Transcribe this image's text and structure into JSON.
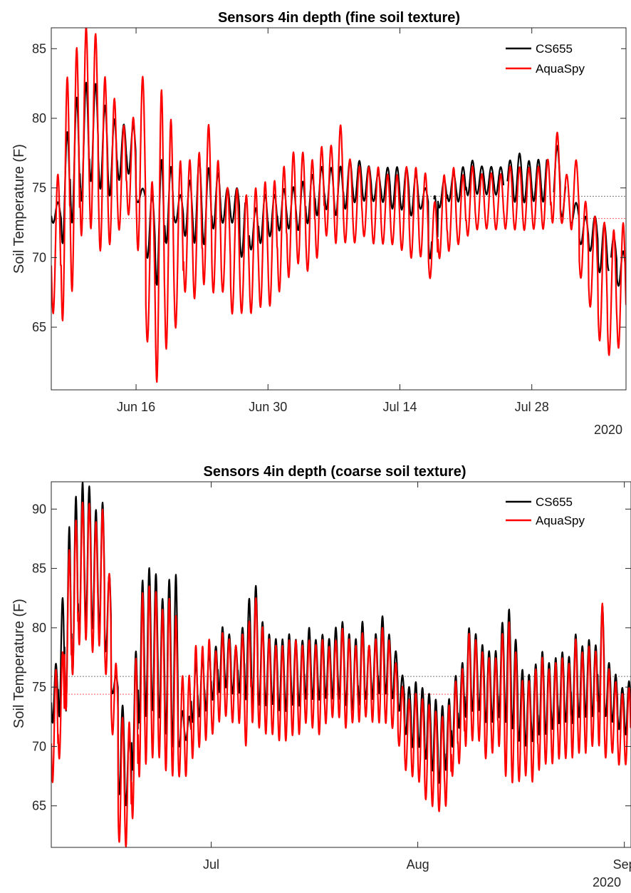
{
  "colors": {
    "cs655": "#000000",
    "aquaspy": "#ff0000",
    "axis": "#262626"
  },
  "chart_data": [
    {
      "type": "line",
      "title": "Sensors 4in depth (fine soil texture)",
      "xlabel": "",
      "ylabel": "Soil Temperature (F)",
      "x_range": [
        "2020-06-07",
        "2020-08-07"
      ],
      "ylim": [
        60.5,
        86.5
      ],
      "yticks": [
        65,
        70,
        75,
        80,
        85
      ],
      "xticks": [
        {
          "date": "2020-06-16",
          "label": "Jun 16"
        },
        {
          "date": "2020-06-30",
          "label": "Jun 30"
        },
        {
          "date": "2020-07-14",
          "label": "Jul 14"
        },
        {
          "date": "2020-07-28",
          "label": "Jul 28"
        }
      ],
      "year_label": "2020",
      "legend": {
        "location": "top-right",
        "entries": [
          "CS655",
          "AquaSpy"
        ]
      },
      "series": [
        {
          "name": "CS655",
          "color": "#000000",
          "mean": 74.4,
          "daily_min": [
            72.5,
            71.0,
            72.5,
            74.0,
            75.5,
            75.0,
            74.5,
            75.5,
            76.0,
            74.0,
            70.0,
            68.0,
            71.0,
            72.5,
            71.5,
            71.0,
            71.0,
            72.0,
            72.5,
            72.5,
            70.0,
            70.5,
            71.0,
            71.5,
            72.0,
            72.0,
            72.0,
            72.5,
            73.0,
            73.5,
            73.0,
            73.5,
            74.0,
            74.0,
            74.0,
            74.0,
            73.5,
            73.5,
            73.0,
            73.5,
            70.0,
            73.5,
            74.0,
            74.0,
            74.5,
            74.5,
            74.5,
            74.5,
            74.5,
            74.0,
            74.0,
            74.0,
            74.0,
            74.0,
            73.0,
            72.5,
            71.0,
            70.5,
            69.0,
            69.0,
            68.0,
            70.0
          ],
          "daily_max": [
            74.0,
            79.0,
            81.5,
            82.5,
            82.5,
            81.0,
            80.0,
            79.5,
            79.5,
            75.0,
            74.5,
            77.0,
            76.5,
            74.5,
            75.5,
            77.0,
            76.5,
            76.0,
            75.0,
            75.0,
            74.5,
            73.5,
            74.5,
            74.5,
            75.0,
            75.0,
            75.5,
            76.0,
            76.5,
            76.5,
            76.5,
            77.0,
            77.0,
            76.5,
            76.0,
            76.5,
            76.5,
            76.5,
            76.0,
            75.0,
            74.5,
            75.5,
            76.0,
            76.5,
            77.0,
            76.5,
            76.5,
            76.5,
            77.0,
            77.5,
            77.0,
            77.0,
            77.5,
            78.0,
            75.5,
            74.0,
            73.0,
            73.0,
            72.5,
            71.5,
            70.5,
            74.0
          ],
          "gaps": [
            [
              20.6,
              21.0
            ],
            [
              40.4,
              40.6
            ],
            [
              48.0,
              48.4
            ],
            [
              52.6,
              53.3
            ],
            [
              54.6,
              55.2
            ],
            [
              59.2,
              59.4
            ]
          ]
        },
        {
          "name": "AquaSpy",
          "color": "#ff0000",
          "mean": 72.8,
          "daily_min": [
            66.0,
            65.5,
            67.5,
            71.5,
            72.0,
            70.5,
            71.0,
            72.0,
            73.0,
            70.5,
            64.0,
            61.0,
            63.5,
            65.0,
            67.5,
            67.0,
            68.0,
            67.5,
            67.5,
            66.0,
            66.0,
            66.0,
            66.5,
            66.5,
            67.5,
            68.5,
            69.5,
            69.0,
            70.0,
            71.5,
            71.0,
            71.0,
            71.0,
            71.5,
            71.0,
            71.0,
            71.0,
            70.5,
            70.0,
            70.0,
            68.5,
            70.0,
            70.5,
            71.0,
            71.5,
            72.0,
            72.0,
            72.0,
            72.0,
            72.0,
            72.0,
            72.0,
            72.0,
            72.5,
            72.5,
            72.0,
            68.5,
            66.5,
            64.0,
            63.0,
            63.5,
            67.0
          ],
          "daily_max": [
            76.0,
            83.0,
            85.0,
            86.5,
            86.0,
            83.0,
            81.5,
            79.5,
            80.0,
            83.0,
            75.5,
            82.0,
            80.0,
            77.0,
            77.0,
            77.5,
            79.5,
            77.0,
            75.0,
            75.0,
            74.5,
            75.0,
            75.5,
            75.5,
            76.5,
            77.5,
            77.5,
            77.0,
            78.0,
            78.0,
            79.5,
            77.0,
            76.5,
            76.5,
            76.5,
            76.0,
            76.0,
            76.5,
            76.5,
            76.0,
            74.0,
            76.0,
            76.5,
            76.0,
            76.5,
            76.0,
            76.0,
            76.0,
            76.5,
            76.5,
            76.5,
            76.5,
            77.0,
            79.0,
            76.0,
            77.0,
            74.0,
            73.0,
            72.5,
            72.0,
            72.5,
            75.0
          ],
          "gaps": []
        }
      ]
    },
    {
      "type": "line",
      "title": "Sensors 4in depth (coarse soil texture)",
      "xlabel": "",
      "ylabel": "Soil Temperature (F)",
      "x_range": [
        "2020-06-07",
        "2020-09-02"
      ],
      "ylim": [
        61.5,
        92.3
      ],
      "yticks": [
        65,
        70,
        75,
        80,
        85,
        90
      ],
      "xticks": [
        {
          "date": "2020-07-01",
          "label": "Jul"
        },
        {
          "date": "2020-08-01",
          "label": "Aug"
        },
        {
          "date": "2020-09-01",
          "label": "Sep"
        }
      ],
      "year_label": "2020",
      "legend": {
        "location": "top-right",
        "entries": [
          "CS655",
          "AquaSpy"
        ]
      },
      "series": [
        {
          "name": "CS655",
          "color": "#000000",
          "mean": 75.9,
          "daily_min": [
            72.0,
            72.5,
            73.0,
            76.0,
            79.0,
            80.5,
            80.0,
            79.5,
            78.0,
            74.5,
            66.0,
            65.0,
            68.0,
            72.0,
            72.5,
            73.0,
            72.5,
            71.0,
            70.0,
            70.0,
            70.5,
            72.0,
            72.5,
            73.0,
            74.0,
            74.5,
            75.0,
            74.5,
            74.5,
            74.0,
            73.5,
            73.5,
            73.5,
            73.5,
            73.0,
            73.0,
            73.5,
            73.5,
            74.0,
            74.0,
            74.0,
            74.0,
            74.0,
            74.0,
            73.5,
            73.0,
            73.5,
            74.0,
            74.0,
            74.5,
            74.5,
            74.0,
            73.0,
            71.0,
            70.0,
            70.0,
            69.0,
            68.0,
            67.0,
            68.0,
            70.0,
            71.5,
            72.5,
            73.0,
            73.0,
            72.0,
            72.0,
            72.5,
            72.0,
            71.5,
            70.5,
            70.0,
            70.5,
            71.0,
            71.0,
            71.5,
            72.0,
            72.0,
            72.0,
            72.5,
            72.5,
            72.5,
            73.0,
            72.5,
            72.0,
            71.5,
            71.0,
            71.0
          ],
          "daily_max": [
            77.0,
            82.5,
            88.5,
            91.0,
            92.3,
            92.0,
            90.0,
            90.5,
            84.5,
            76.0,
            73.5,
            71.0,
            78.0,
            84.0,
            85.0,
            84.5,
            82.5,
            84.0,
            84.5,
            73.0,
            72.5,
            77.0,
            77.5,
            78.0,
            78.5,
            80.0,
            79.5,
            78.5,
            80.0,
            82.5,
            83.5,
            80.5,
            79.5,
            79.0,
            79.0,
            79.5,
            79.0,
            79.0,
            80.0,
            79.0,
            79.5,
            79.0,
            80.0,
            80.5,
            79.5,
            79.0,
            80.5,
            78.5,
            79.5,
            81.0,
            79.5,
            78.0,
            76.0,
            75.0,
            75.5,
            75.0,
            74.5,
            74.0,
            73.5,
            74.0,
            76.0,
            77.0,
            80.0,
            79.5,
            78.5,
            78.0,
            78.0,
            80.5,
            81.5,
            79.0,
            76.5,
            76.0,
            77.0,
            78.0,
            77.0,
            77.5,
            78.0,
            77.5,
            79.5,
            78.5,
            79.0,
            78.5,
            82.0,
            77.0,
            76.0,
            75.0,
            75.5,
            74.5
          ],
          "gaps": []
        },
        {
          "name": "AquaSpy",
          "color": "#ff0000",
          "mean": 74.4,
          "daily_min": [
            67.0,
            69.0,
            73.0,
            76.0,
            78.5,
            79.0,
            78.0,
            78.5,
            76.0,
            71.0,
            62.0,
            61.5,
            64.0,
            67.5,
            68.5,
            69.0,
            69.0,
            68.0,
            67.5,
            67.5,
            67.5,
            69.0,
            70.0,
            70.5,
            71.0,
            72.0,
            72.5,
            72.0,
            72.0,
            70.0,
            72.0,
            71.5,
            71.0,
            71.0,
            70.5,
            70.5,
            71.0,
            71.0,
            72.0,
            71.5,
            71.0,
            72.0,
            72.5,
            72.5,
            71.5,
            72.0,
            72.0,
            72.5,
            72.0,
            72.0,
            72.0,
            71.5,
            70.0,
            68.0,
            67.5,
            67.0,
            65.5,
            65.0,
            64.5,
            65.0,
            67.5,
            68.5,
            70.0,
            70.5,
            70.5,
            69.0,
            69.5,
            70.0,
            67.5,
            67.0,
            67.0,
            67.5,
            67.0,
            68.0,
            68.5,
            68.5,
            69.0,
            69.0,
            69.0,
            69.5,
            69.5,
            70.0,
            70.0,
            69.0,
            69.5,
            68.5,
            68.5,
            68.5
          ],
          "daily_max": [
            76.5,
            78.0,
            86.5,
            89.0,
            90.5,
            90.5,
            89.0,
            90.0,
            84.5,
            77.0,
            72.5,
            72.0,
            77.5,
            83.0,
            83.5,
            83.0,
            81.5,
            82.5,
            81.0,
            76.0,
            76.0,
            78.5,
            78.5,
            79.0,
            78.0,
            79.5,
            79.0,
            78.5,
            79.5,
            80.5,
            82.5,
            80.0,
            79.0,
            78.5,
            78.5,
            79.0,
            79.0,
            78.5,
            79.0,
            78.5,
            79.0,
            78.5,
            79.0,
            80.0,
            79.0,
            78.5,
            79.5,
            78.5,
            79.0,
            80.0,
            79.0,
            77.0,
            75.0,
            74.0,
            74.5,
            74.0,
            73.5,
            73.0,
            72.5,
            73.5,
            75.5,
            76.5,
            79.5,
            79.0,
            78.0,
            77.5,
            77.5,
            79.5,
            80.5,
            78.0,
            75.5,
            75.5,
            76.5,
            77.5,
            76.5,
            77.0,
            77.5,
            77.0,
            79.0,
            78.0,
            78.5,
            78.0,
            82.0,
            76.5,
            75.5,
            74.5,
            75.0,
            74.0
          ],
          "gaps": []
        }
      ]
    }
  ]
}
